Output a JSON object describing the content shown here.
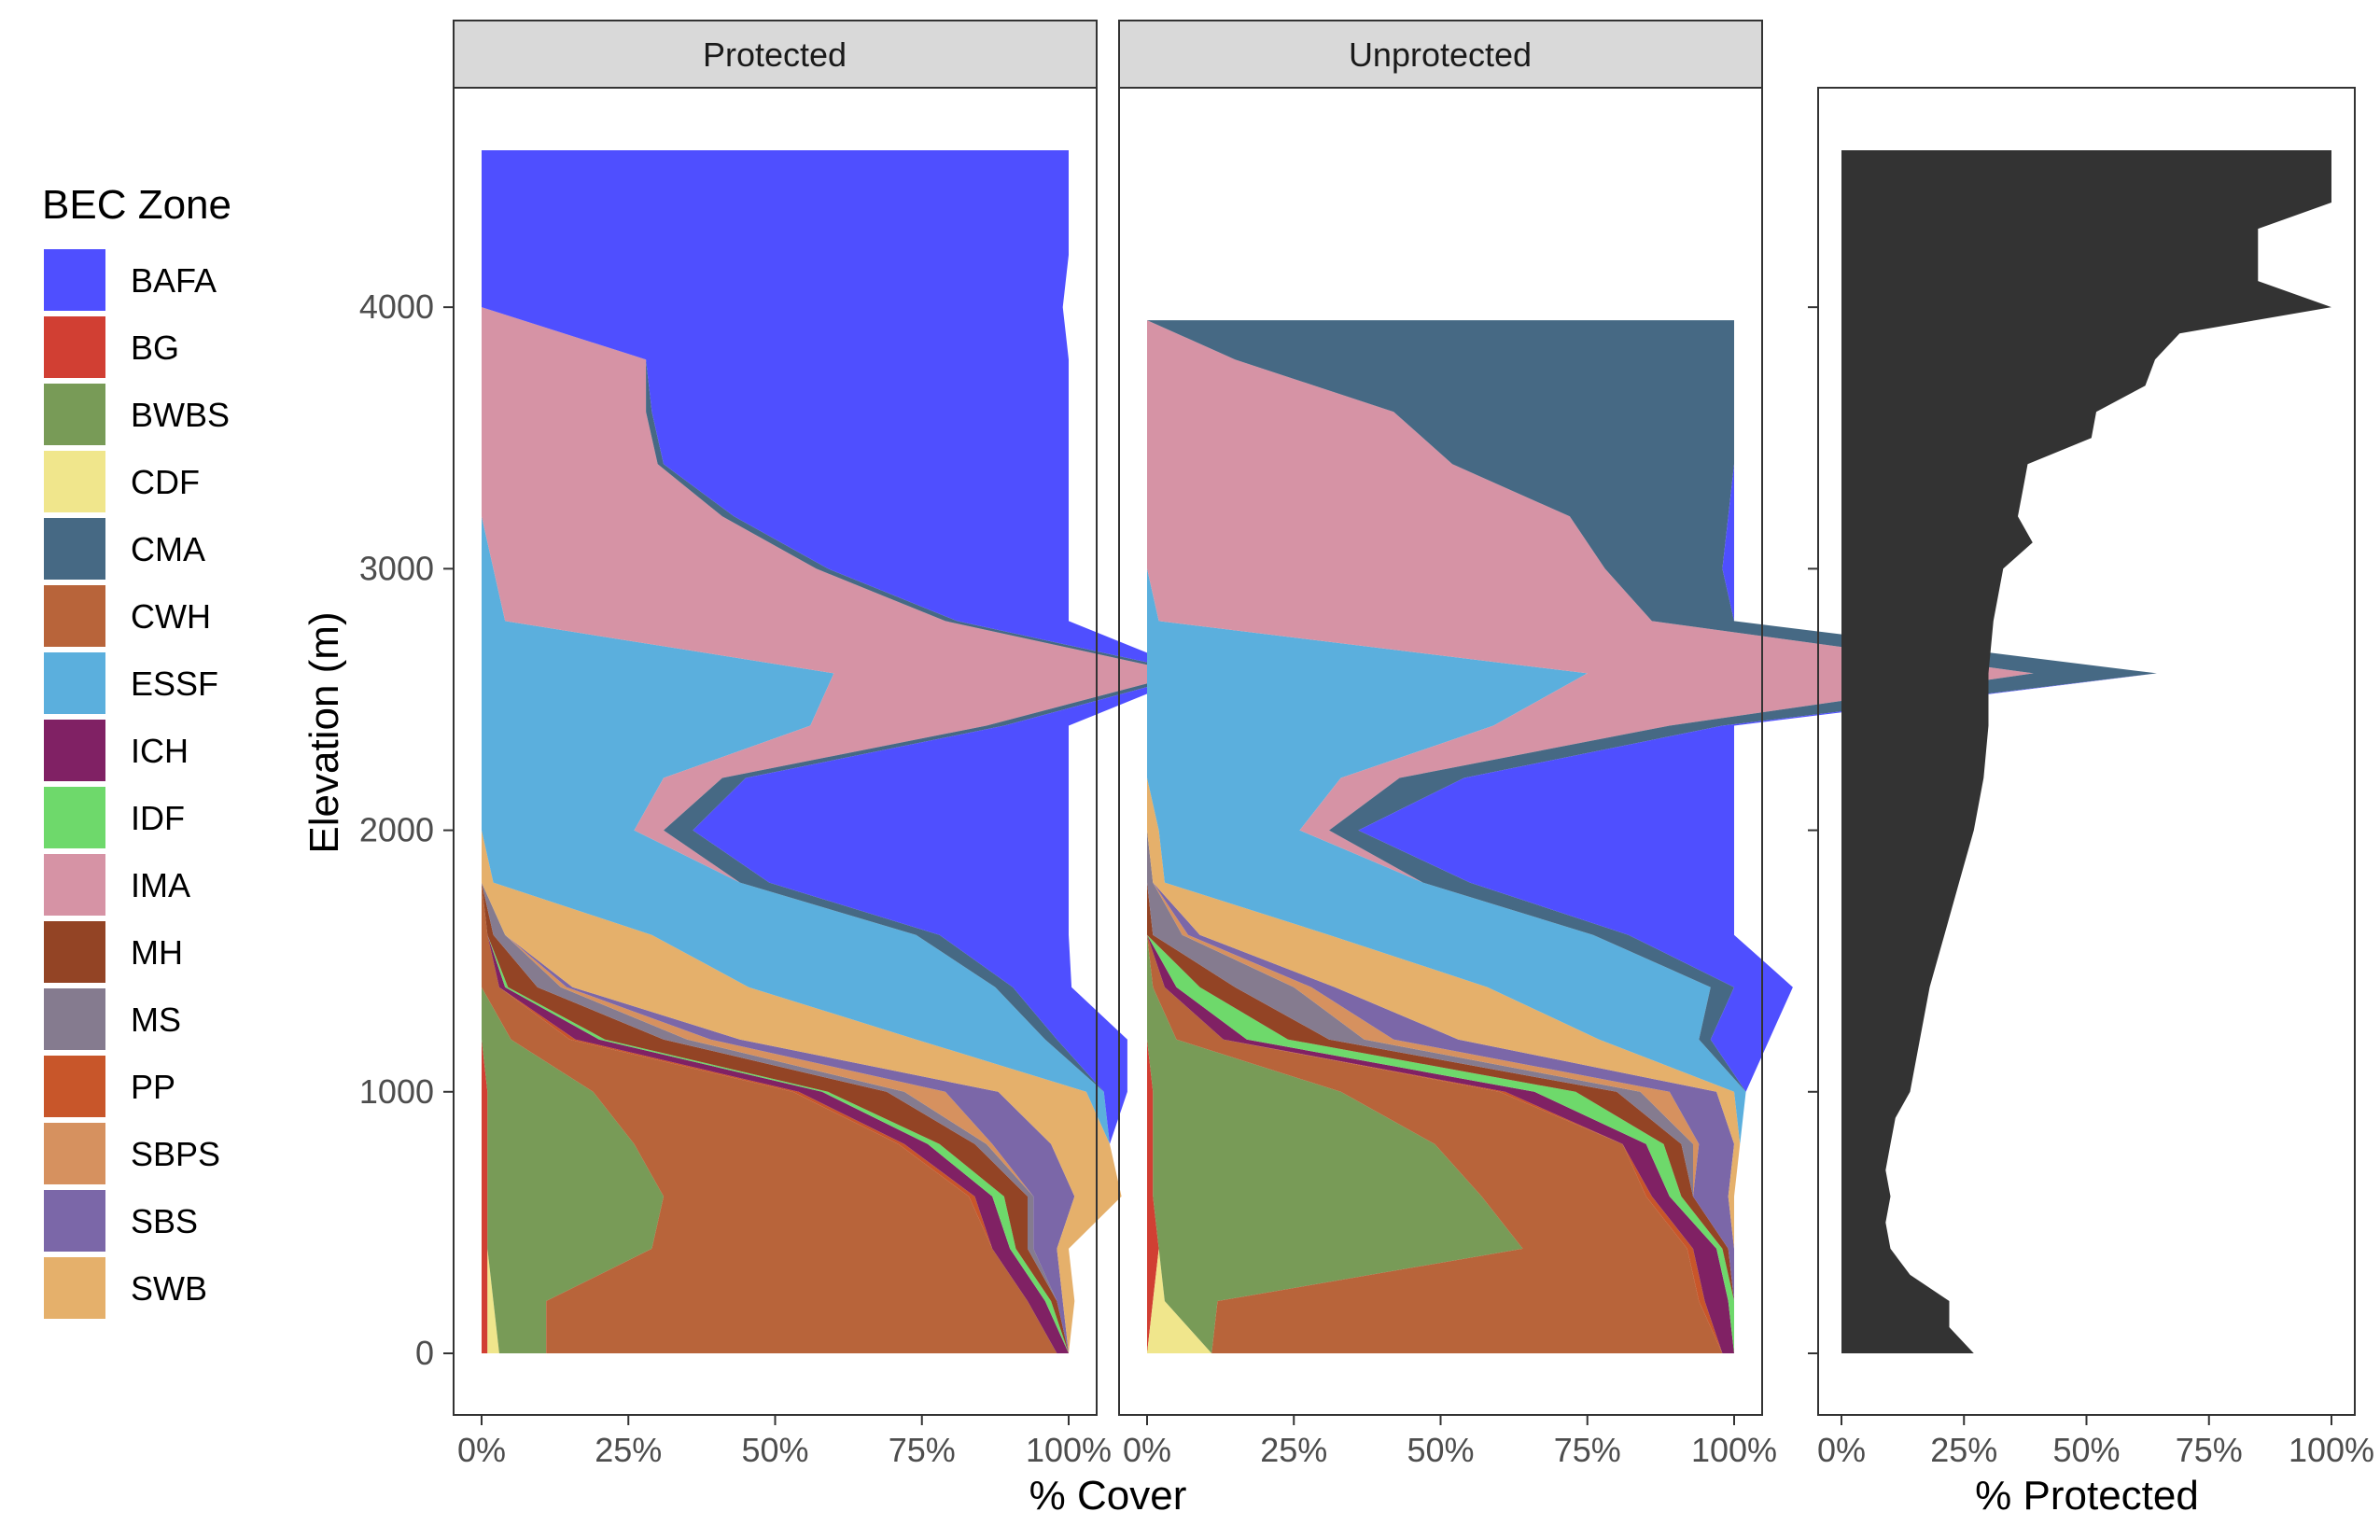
{
  "chart_data": [
    {
      "type": "area",
      "title": "Protected",
      "xlabel": "% Cover",
      "ylabel": "Elevation (m)",
      "xlim": [
        0,
        1
      ],
      "ylim": [
        0,
        4600
      ],
      "x_ticks": [
        0,
        0.25,
        0.5,
        0.75,
        1.0
      ],
      "x_tick_labels": [
        "0%",
        "25%",
        "50%",
        "75%",
        "100%"
      ],
      "y_ticks": [
        0,
        1000,
        2000,
        3000,
        4000
      ],
      "y_tick_labels": [
        "0",
        "1000",
        "2000",
        "3000",
        "4000"
      ],
      "elevation": [
        0,
        200,
        400,
        600,
        800,
        1000,
        1200,
        1400,
        1600,
        1800,
        2000,
        2200,
        2400,
        2600,
        2800,
        3000,
        3200,
        3400,
        3600,
        3800,
        4000,
        4200,
        4400,
        4600
      ],
      "series": [
        {
          "name": "BG",
          "values": [
            0.01,
            0.01,
            0.01,
            0.01,
            0.01,
            0.01,
            0,
            0,
            0,
            0,
            0,
            0,
            0,
            0,
            0,
            0,
            0,
            0,
            0,
            0,
            0,
            0,
            0,
            0
          ]
        },
        {
          "name": "CDF",
          "values": [
            0.02,
            0.01,
            0,
            0,
            0,
            0,
            0,
            0,
            0,
            0,
            0,
            0,
            0,
            0,
            0,
            0,
            0,
            0,
            0,
            0,
            0,
            0,
            0,
            0
          ]
        },
        {
          "name": "BWBS",
          "values": [
            0.08,
            0.09,
            0.28,
            0.3,
            0.25,
            0.18,
            0.05,
            0,
            0,
            0,
            0,
            0,
            0,
            0,
            0,
            0,
            0,
            0,
            0,
            0,
            0,
            0,
            0,
            0
          ]
        },
        {
          "name": "CWH",
          "values": [
            0.87,
            0.82,
            0.58,
            0.52,
            0.45,
            0.34,
            0.1,
            0.03,
            0.01,
            0,
            0,
            0,
            0,
            0,
            0,
            0,
            0,
            0,
            0,
            0,
            0,
            0,
            0,
            0
          ]
        },
        {
          "name": "PP",
          "values": [
            0,
            0,
            0,
            0.01,
            0.01,
            0.01,
            0.01,
            0,
            0,
            0,
            0,
            0,
            0,
            0,
            0,
            0,
            0,
            0,
            0,
            0,
            0,
            0,
            0,
            0
          ]
        },
        {
          "name": "ICH",
          "values": [
            0.02,
            0.03,
            0.03,
            0.03,
            0.04,
            0.04,
            0.04,
            0.01,
            0,
            0,
            0,
            0,
            0,
            0,
            0,
            0,
            0,
            0,
            0,
            0,
            0,
            0,
            0,
            0
          ]
        },
        {
          "name": "IDF",
          "values": [
            0,
            0.01,
            0.01,
            0.02,
            0.02,
            0.01,
            0.01,
            0.005,
            0,
            0,
            0,
            0,
            0,
            0,
            0,
            0,
            0,
            0,
            0,
            0,
            0,
            0,
            0,
            0
          ]
        },
        {
          "name": "MH",
          "values": [
            0,
            0.01,
            0.02,
            0.04,
            0.06,
            0.1,
            0.1,
            0.05,
            0.01,
            0,
            0,
            0,
            0,
            0,
            0,
            0,
            0,
            0,
            0,
            0,
            0,
            0,
            0,
            0
          ]
        },
        {
          "name": "MS",
          "values": [
            0,
            0,
            0.01,
            0.01,
            0.02,
            0.03,
            0.04,
            0.04,
            0.02,
            0,
            0,
            0,
            0,
            0,
            0,
            0,
            0,
            0,
            0,
            0,
            0,
            0,
            0,
            0
          ]
        },
        {
          "name": "SBPS",
          "values": [
            0,
            0,
            0,
            0,
            0.01,
            0.07,
            0.04,
            0.01,
            0,
            0,
            0,
            0,
            0,
            0,
            0,
            0,
            0,
            0,
            0,
            0,
            0,
            0,
            0,
            0
          ]
        },
        {
          "name": "SBS",
          "values": [
            0,
            0.01,
            0.04,
            0.07,
            0.1,
            0.09,
            0.05,
            0.01,
            0,
            0,
            0,
            0,
            0,
            0,
            0,
            0,
            0,
            0,
            0,
            0,
            0,
            0,
            0,
            0
          ]
        },
        {
          "name": "SWB",
          "values": [
            0,
            0.02,
            0.02,
            0.08,
            0.1,
            0.15,
            0.3,
            0.3,
            0.25,
            0.02,
            0,
            0,
            0,
            0,
            0,
            0,
            0,
            0,
            0,
            0,
            0,
            0,
            0,
            0
          ]
        },
        {
          "name": "ESSF",
          "values": [
            0,
            0,
            0,
            0,
            0,
            0.03,
            0.22,
            0.42,
            0.45,
            0.42,
            0.26,
            0.31,
            0.56,
            0.6,
            0.04,
            0.02,
            0,
            0,
            0,
            0,
            0,
            0,
            0,
            0
          ]
        },
        {
          "name": "IMA",
          "values": [
            0,
            0,
            0,
            0,
            0,
            0,
            0,
            0,
            0,
            0,
            0.05,
            0.1,
            0.3,
            0.6,
            0.75,
            0.55,
            0.41,
            0.3,
            0.28,
            0.28,
            0,
            0,
            0,
            0
          ]
        },
        {
          "name": "CMA",
          "values": [
            0,
            0,
            0,
            0,
            0,
            0,
            0.02,
            0.03,
            0.04,
            0.05,
            0.05,
            0.04,
            0.03,
            0.02,
            0.02,
            0.02,
            0.02,
            0.01,
            0.01,
            0,
            0,
            0,
            0,
            0
          ]
        },
        {
          "name": "BAFA",
          "values": [
            0,
            0,
            0,
            0,
            0,
            0.04,
            0.12,
            0.1,
            0.22,
            0.51,
            0.64,
            0.55,
            0.11,
            0,
            0.19,
            0.41,
            0.57,
            0.69,
            0.71,
            0.72,
            0.99,
            1,
            1,
            1
          ]
        }
      ]
    },
    {
      "type": "area",
      "title": "Unprotected",
      "xlabel": "% Cover",
      "xlim": [
        0,
        1
      ],
      "ylim": [
        0,
        4600
      ],
      "x_ticks": [
        0,
        0.25,
        0.5,
        0.75,
        1.0
      ],
      "x_tick_labels": [
        "0%",
        "25%",
        "50%",
        "75%",
        "100%"
      ],
      "elevation": [
        0,
        200,
        400,
        600,
        800,
        1000,
        1200,
        1400,
        1600,
        1800,
        2000,
        2200,
        2400,
        2600,
        2800,
        3000,
        3200,
        3400,
        3600,
        3800,
        3950
      ],
      "series": [
        {
          "name": "BG",
          "values": [
            0,
            0.01,
            0.02,
            0.01,
            0.01,
            0.01,
            0,
            0,
            0,
            0,
            0,
            0,
            0,
            0,
            0,
            0,
            0,
            0,
            0,
            0,
            0
          ]
        },
        {
          "name": "CDF",
          "values": [
            0.11,
            0.02,
            0,
            0,
            0,
            0,
            0,
            0,
            0,
            0,
            0,
            0,
            0,
            0,
            0,
            0,
            0,
            0,
            0,
            0,
            0
          ]
        },
        {
          "name": "BWBS",
          "values": [
            0,
            0.09,
            0.62,
            0.56,
            0.48,
            0.32,
            0.05,
            0.01,
            0,
            0,
            0,
            0,
            0,
            0,
            0,
            0,
            0,
            0,
            0,
            0,
            0
          ]
        },
        {
          "name": "CWH",
          "values": [
            0.87,
            0.82,
            0.28,
            0.28,
            0.32,
            0.27,
            0.08,
            0.02,
            0,
            0,
            0,
            0,
            0,
            0,
            0,
            0,
            0,
            0,
            0,
            0,
            0
          ]
        },
        {
          "name": "PP",
          "values": [
            0,
            0.01,
            0.01,
            0.01,
            0,
            0.01,
            0,
            0,
            0,
            0,
            0,
            0,
            0,
            0,
            0,
            0,
            0,
            0,
            0,
            0,
            0
          ]
        },
        {
          "name": "ICH",
          "values": [
            0.02,
            0.04,
            0.04,
            0.03,
            0.04,
            0.05,
            0.04,
            0.02,
            0,
            0,
            0,
            0,
            0,
            0,
            0,
            0,
            0,
            0,
            0,
            0,
            0
          ]
        },
        {
          "name": "IDF",
          "values": [
            0,
            0.01,
            0.01,
            0.02,
            0.03,
            0.07,
            0.07,
            0.04,
            0,
            0,
            0,
            0,
            0,
            0,
            0,
            0,
            0,
            0,
            0,
            0,
            0
          ]
        },
        {
          "name": "MH",
          "values": [
            0,
            0,
            0.01,
            0.02,
            0.03,
            0.07,
            0.07,
            0.06,
            0.01,
            0,
            0,
            0,
            0,
            0,
            0,
            0,
            0,
            0,
            0,
            0,
            0
          ]
        },
        {
          "name": "MS",
          "values": [
            0,
            0,
            0,
            0,
            0.02,
            0.04,
            0.06,
            0.1,
            0.05,
            0.01,
            0,
            0,
            0,
            0,
            0,
            0,
            0,
            0,
            0,
            0,
            0
          ]
        },
        {
          "name": "SBPS",
          "values": [
            0,
            0,
            0,
            0,
            0.01,
            0.05,
            0.05,
            0.03,
            0.01,
            0,
            0,
            0,
            0,
            0,
            0,
            0,
            0,
            0,
            0,
            0,
            0
          ]
        },
        {
          "name": "SBS",
          "values": [
            0,
            0,
            0.01,
            0.06,
            0.06,
            0.08,
            0.11,
            0.04,
            0.02,
            0,
            0,
            0,
            0,
            0,
            0,
            0,
            0,
            0,
            0,
            0,
            0
          ]
        },
        {
          "name": "SWB",
          "values": [
            0,
            0,
            0,
            0.01,
            0.01,
            0.03,
            0.24,
            0.26,
            0.22,
            0.02,
            0.02,
            0,
            0,
            0,
            0,
            0,
            0,
            0,
            0,
            0,
            0
          ]
        },
        {
          "name": "ESSF",
          "values": [
            0,
            0,
            0,
            0,
            0,
            0.02,
            0.17,
            0.38,
            0.45,
            0.44,
            0.24,
            0.33,
            0.59,
            0.75,
            0.02,
            0,
            0,
            0,
            0,
            0,
            0
          ]
        },
        {
          "name": "IMA",
          "values": [
            0,
            0,
            0,
            0,
            0,
            0,
            0,
            0,
            0,
            0,
            0.05,
            0.1,
            0.3,
            0.76,
            0.84,
            0.78,
            0.72,
            0.52,
            0.42,
            0.15,
            0
          ]
        },
        {
          "name": "CMA",
          "values": [
            0,
            0,
            0,
            0,
            0,
            0,
            0.02,
            0.04,
            0.06,
            0.08,
            0.05,
            0.11,
            0.09,
            0.21,
            0.14,
            0.2,
            0.27,
            0.48,
            0.58,
            0.85,
            1
          ]
        },
        {
          "name": "BAFA",
          "values": [
            0,
            0,
            0,
            0,
            0,
            0,
            0.1,
            0.1,
            0.18,
            0.45,
            0.64,
            0.46,
            0.02,
            0,
            0,
            0.02,
            0.01,
            0,
            0,
            0,
            0
          ]
        }
      ]
    },
    {
      "type": "area",
      "title": "",
      "xlabel": "% Protected",
      "xlim": [
        0,
        1
      ],
      "ylim": [
        0,
        4600
      ],
      "x_ticks": [
        0,
        0.25,
        0.5,
        0.75,
        1.0
      ],
      "x_tick_labels": [
        "0%",
        "25%",
        "50%",
        "75%",
        "100%"
      ],
      "elevation": [
        0,
        100,
        200,
        300,
        400,
        500,
        600,
        700,
        800,
        900,
        1000,
        1200,
        1400,
        1600,
        1800,
        2000,
        2200,
        2400,
        2600,
        2800,
        3000,
        3100,
        3200,
        3300,
        3400,
        3500,
        3600,
        3700,
        3800,
        3900,
        4000,
        4100,
        4200,
        4300,
        4400,
        4600
      ],
      "series": [
        {
          "name": "",
          "values": [
            0.27,
            0.22,
            0.22,
            0.14,
            0.1,
            0.09,
            0.1,
            0.09,
            0.1,
            0.11,
            0.14,
            0.16,
            0.18,
            0.21,
            0.24,
            0.27,
            0.29,
            0.3,
            0.3,
            0.31,
            0.33,
            0.39,
            0.36,
            0.37,
            0.38,
            0.51,
            0.52,
            0.62,
            0.64,
            0.69,
            1.0,
            0.85,
            0.85,
            0.85,
            1.0,
            1.0
          ]
        }
      ]
    }
  ],
  "legend": {
    "title": "BEC Zone",
    "items": [
      {
        "label": "BAFA",
        "color": "#4f4fff"
      },
      {
        "label": "BG",
        "color": "#d13f33"
      },
      {
        "label": "BWBS",
        "color": "#789b57"
      },
      {
        "label": "CDF",
        "color": "#f0e68c"
      },
      {
        "label": "CMA",
        "color": "#466984"
      },
      {
        "label": "CWH",
        "color": "#b8643a"
      },
      {
        "label": "ESSF",
        "color": "#5bafdd"
      },
      {
        "label": "ICH",
        "color": "#802164"
      },
      {
        "label": "IDF",
        "color": "#6ed96b"
      },
      {
        "label": "IMA",
        "color": "#d693a5"
      },
      {
        "label": "MH",
        "color": "#934425"
      },
      {
        "label": "MS",
        "color": "#857b8f"
      },
      {
        "label": "PP",
        "color": "#c8562a"
      },
      {
        "label": "SBPS",
        "color": "#d6915f"
      },
      {
        "label": "SBS",
        "color": "#7b67a8"
      },
      {
        "label": "SWB",
        "color": "#e5b06b"
      }
    ]
  },
  "protected_fill_color": "#333333",
  "strip_fill_color": "#d9d9d9"
}
